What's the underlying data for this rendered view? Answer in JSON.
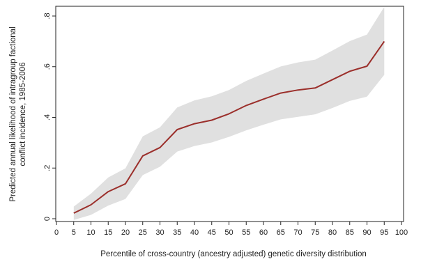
{
  "chart_data": {
    "type": "line",
    "title": "",
    "xlabel": "Percentile of cross-country (ancestry adjusted) genetic diversity distribution",
    "ylabel_lines": [
      "Predicted annual likelihood of intragroup factional",
      "conflict incidence, 1985-2006"
    ],
    "xlim": [
      0,
      100
    ],
    "ylim": [
      0,
      0.8
    ],
    "x_ticks": [
      0,
      5,
      10,
      15,
      20,
      25,
      30,
      35,
      40,
      45,
      50,
      55,
      60,
      65,
      70,
      75,
      80,
      85,
      90,
      95,
      100
    ],
    "x_tick_labels": [
      "0",
      "5",
      "10",
      "15",
      "20",
      "25",
      "30",
      "35",
      "40",
      "45",
      "50",
      "55",
      "60",
      "65",
      "70",
      "75",
      "80",
      "85",
      "90",
      "95",
      "100"
    ],
    "y_ticks": [
      0,
      0.2,
      0.4,
      0.6,
      0.8
    ],
    "y_tick_labels": [
      "0",
      ".2",
      ".4",
      ".6",
      ".8"
    ],
    "grid": false,
    "legend": "none",
    "series": [
      {
        "x": [
          5,
          10,
          15,
          20,
          25,
          30,
          35,
          40,
          45,
          50,
          55,
          60,
          65,
          70,
          75,
          80,
          85,
          90,
          95
        ],
        "y": [
          0.022,
          0.055,
          0.107,
          0.138,
          0.248,
          0.281,
          0.352,
          0.375,
          0.389,
          0.414,
          0.447,
          0.472,
          0.496,
          0.508,
          0.516,
          0.549,
          0.582,
          0.602,
          0.7
        ],
        "ci_lower": [
          -0.005,
          0.015,
          0.052,
          0.078,
          0.172,
          0.205,
          0.265,
          0.287,
          0.301,
          0.323,
          0.349,
          0.371,
          0.392,
          0.402,
          0.412,
          0.437,
          0.465,
          0.482,
          0.568
        ],
        "ci_upper": [
          0.048,
          0.099,
          0.163,
          0.199,
          0.325,
          0.361,
          0.439,
          0.467,
          0.483,
          0.508,
          0.544,
          0.573,
          0.601,
          0.617,
          0.628,
          0.664,
          0.701,
          0.727,
          0.836
        ]
      }
    ],
    "colors": {
      "line": "#9b2f2b",
      "ci_band": "#e0e0e0",
      "axis": "#222222",
      "text": "#222222"
    }
  }
}
